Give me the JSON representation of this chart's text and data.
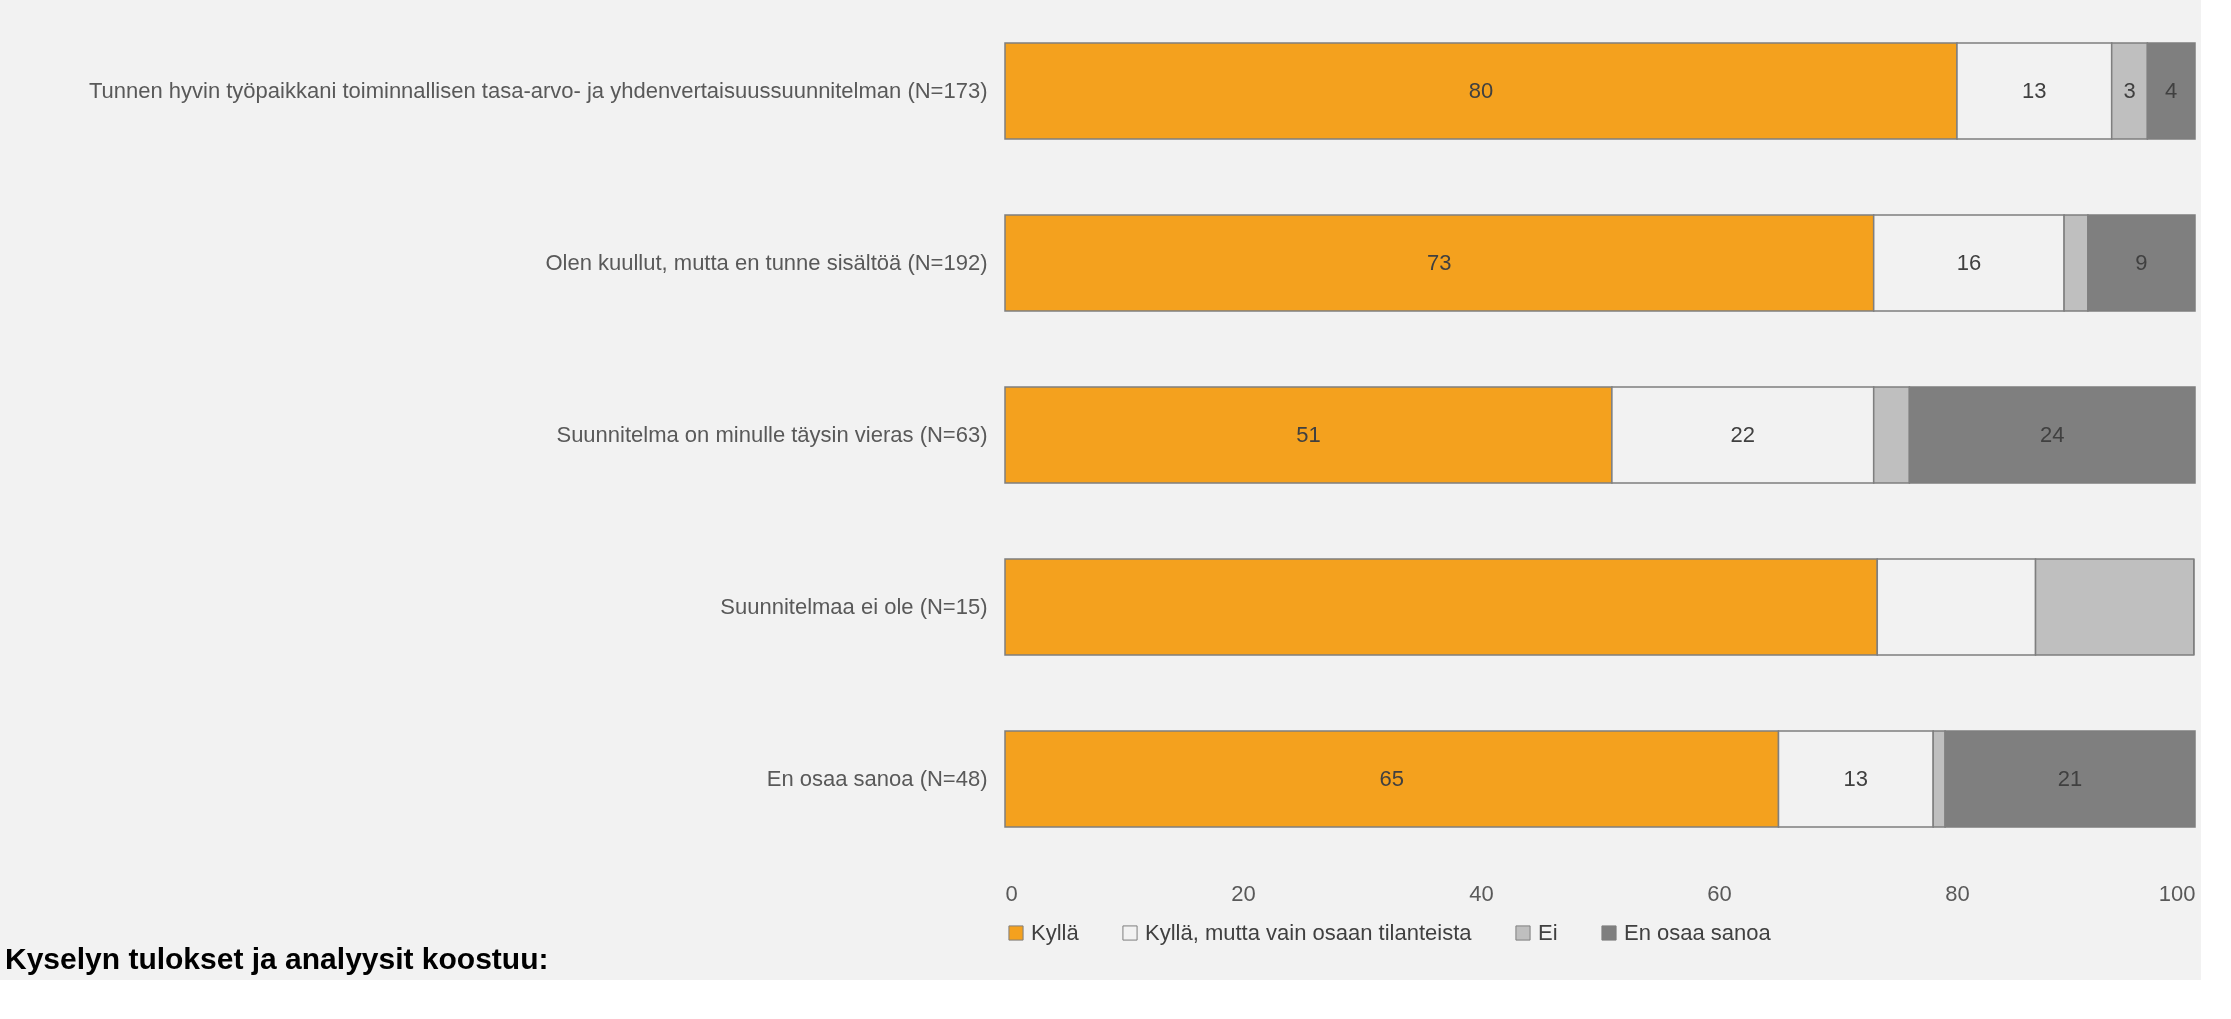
{
  "chart_data": {
    "type": "bar",
    "orientation": "horizontal",
    "stacked": true,
    "categories": [
      "Tunnen hyvin työpaikkani toiminnallisen tasa-arvo- ja yhdenvertaisuussuunnitelman (N=173)",
      "Olen kuullut, mutta en tunne sisältöä (N=192)",
      "Suunnitelma on minulle täysin vieras (N=63)",
      "Suunnitelmaa ei ole (N=15)",
      "En osaa sanoa (N=48)"
    ],
    "series": [
      {
        "name": "Kyllä",
        "color": "#f4a11e",
        "values": [
          80,
          73,
          51,
          73.3,
          65
        ],
        "value_labels": [
          "80",
          "73",
          "51",
          null,
          "65"
        ]
      },
      {
        "name": "Kyllä, mutta vain osaan tilanteista",
        "color": "#f2f2f2",
        "values": [
          13,
          16,
          22,
          13.3,
          13
        ],
        "value_labels": [
          "13",
          "16",
          "22",
          null,
          "13"
        ]
      },
      {
        "name": "Ei",
        "color": "#bfbfbf",
        "values": [
          3,
          2,
          3,
          13.3,
          1
        ],
        "value_labels": [
          "3",
          null,
          null,
          null,
          null
        ]
      },
      {
        "name": "En osaa sanoa",
        "color": "#7f7f7f",
        "values": [
          4,
          9,
          24,
          0,
          21
        ],
        "value_labels": [
          "4",
          "9",
          "24",
          null,
          "21"
        ]
      }
    ],
    "xlim": [
      0,
      100
    ],
    "xticks": [
      0,
      20,
      40,
      60,
      80,
      100
    ],
    "grid": false,
    "legend": "bottom",
    "annotations": [
      "Kyselyn tulokset ja analyysit koostuu:"
    ]
  }
}
